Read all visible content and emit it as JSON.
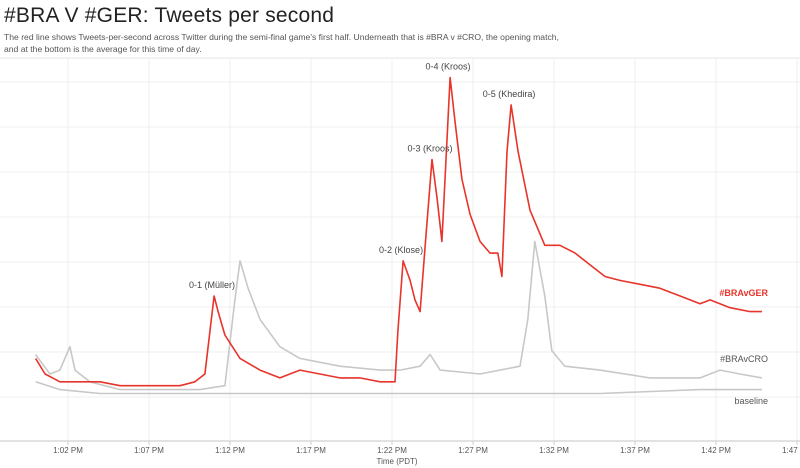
{
  "title": "#BRA V #GER: Tweets per second",
  "subtitle_lines": [
    "The red line shows Tweets-per-second across Twitter during the semi-final game's first half. Underneath that is #BRA v #CRO, the opening match,",
    "and at the bottom is the average for this time of day."
  ],
  "chart_data": {
    "type": "line",
    "title": "#BRA V #GER: Tweets per second",
    "xlabel": "Time (PDT)",
    "ylabel": "",
    "x_ticks": [
      "1:02 PM",
      "1:07 PM",
      "1:12 PM",
      "1:17 PM",
      "1:22 PM",
      "1:27 PM",
      "1:32 PM",
      "1:37 PM",
      "1:42 PM",
      "1:47 PM"
    ],
    "x_tick_times": [
      "13:02:00",
      "13:07:00",
      "13:12:00",
      "13:17:00",
      "13:22:00",
      "13:27:00",
      "13:32:00",
      "13:37:00",
      "13:42:00",
      "13:47:00"
    ],
    "xlim": [
      "13:00:00",
      "13:47:00"
    ],
    "y_units": "relative (no y-axis printed)",
    "ylim": [
      0,
      100
    ],
    "grid": true,
    "series": [
      {
        "name": "#BRAvGER",
        "color": "#e8342a",
        "points": [
          [
            "13:00:00",
            24
          ],
          [
            "13:00:35",
            20
          ],
          [
            "13:01:30",
            18
          ],
          [
            "13:02:44",
            18
          ],
          [
            "13:03:59",
            18
          ],
          [
            "13:05:13",
            17
          ],
          [
            "13:06:27",
            17
          ],
          [
            "13:07:41",
            17
          ],
          [
            "13:08:55",
            17
          ],
          [
            "13:09:50",
            18
          ],
          [
            "13:10:27",
            20
          ],
          [
            "13:11:01",
            40
          ],
          [
            "13:11:16",
            36
          ],
          [
            "13:11:41",
            30
          ],
          [
            "13:12:37",
            24
          ],
          [
            "13:13:51",
            21
          ],
          [
            "13:15:05",
            19
          ],
          [
            "13:16:19",
            21
          ],
          [
            "13:17:33",
            20
          ],
          [
            "13:18:47",
            19
          ],
          [
            "13:20:01",
            19
          ],
          [
            "13:21:16",
            18
          ],
          [
            "13:22:11",
            18
          ],
          [
            "13:22:22",
            31
          ],
          [
            "13:22:41",
            49
          ],
          [
            "13:23:07",
            44
          ],
          [
            "13:23:25",
            39
          ],
          [
            "13:23:44",
            36
          ],
          [
            "13:24:02",
            52
          ],
          [
            "13:24:28",
            75
          ],
          [
            "13:24:47",
            65
          ],
          [
            "13:25:05",
            54
          ],
          [
            "13:25:20",
            75
          ],
          [
            "13:25:35",
            96
          ],
          [
            "13:25:53",
            85
          ],
          [
            "13:26:19",
            70
          ],
          [
            "13:26:49",
            61
          ],
          [
            "13:27:26",
            54
          ],
          [
            "13:28:03",
            51
          ],
          [
            "13:28:32",
            51
          ],
          [
            "13:28:47",
            45
          ],
          [
            "13:29:06",
            77
          ],
          [
            "13:29:21",
            89
          ],
          [
            "13:29:47",
            77
          ],
          [
            "13:30:31",
            62
          ],
          [
            "13:31:26",
            53
          ],
          [
            "13:32:22",
            53
          ],
          [
            "13:33:18",
            51
          ],
          [
            "13:34:13",
            48
          ],
          [
            "13:35:09",
            45
          ],
          [
            "13:36:04",
            44
          ],
          [
            "13:37:19",
            43
          ],
          [
            "13:38:32",
            42
          ],
          [
            "13:39:47",
            40
          ],
          [
            "13:41:01",
            38
          ],
          [
            "13:41:38",
            39
          ],
          [
            "13:42:52",
            37
          ],
          [
            "13:44:06",
            36
          ],
          [
            "13:44:50",
            36
          ]
        ]
      },
      {
        "name": "#BRAvCRO",
        "color": "#c8c8c8",
        "points": [
          [
            "13:00:00",
            25
          ],
          [
            "13:00:53",
            20
          ],
          [
            "13:01:30",
            21
          ],
          [
            "13:02:07",
            27
          ],
          [
            "13:02:26",
            21
          ],
          [
            "13:03:21",
            18
          ],
          [
            "13:05:13",
            16
          ],
          [
            "13:07:41",
            16
          ],
          [
            "13:10:09",
            16
          ],
          [
            "13:11:41",
            17
          ],
          [
            "13:12:18",
            39
          ],
          [
            "13:12:37",
            49
          ],
          [
            "13:13:07",
            42
          ],
          [
            "13:13:51",
            34
          ],
          [
            "13:15:05",
            27
          ],
          [
            "13:16:19",
            24
          ],
          [
            "13:18:47",
            22
          ],
          [
            "13:21:16",
            21
          ],
          [
            "13:22:30",
            21
          ],
          [
            "13:23:44",
            22
          ],
          [
            "13:24:21",
            25
          ],
          [
            "13:24:58",
            21
          ],
          [
            "13:27:26",
            20
          ],
          [
            "13:29:54",
            22
          ],
          [
            "13:30:23",
            34
          ],
          [
            "13:30:49",
            54
          ],
          [
            "13:31:26",
            40
          ],
          [
            "13:31:52",
            26
          ],
          [
            "13:32:40",
            22
          ],
          [
            "13:34:50",
            21
          ],
          [
            "13:37:55",
            19
          ],
          [
            "13:41:01",
            19
          ],
          [
            "13:42:15",
            21
          ],
          [
            "13:43:29",
            20
          ],
          [
            "13:44:50",
            19
          ]
        ]
      },
      {
        "name": "baseline",
        "color": "#c8c8c8",
        "points": [
          [
            "13:00:00",
            18
          ],
          [
            "13:01:30",
            16
          ],
          [
            "13:03:59",
            15
          ],
          [
            "13:10:09",
            15
          ],
          [
            "13:16:19",
            15
          ],
          [
            "13:22:30",
            15
          ],
          [
            "13:28:40",
            15
          ],
          [
            "13:34:50",
            15
          ],
          [
            "13:41:01",
            16
          ],
          [
            "13:44:50",
            16
          ]
        ]
      }
    ],
    "annotations": [
      {
        "text": "0-1 (Müller)",
        "time": "13:11:01",
        "value": 40
      },
      {
        "text": "0-2 (Klose)",
        "time": "13:22:41",
        "value": 49
      },
      {
        "text": "0-3 (Kroos)",
        "time": "13:24:28",
        "value": 75
      },
      {
        "text": "0-4 (Kroos)",
        "time": "13:25:35",
        "value": 96
      },
      {
        "text": "0-5 (Khedira)",
        "time": "13:29:21",
        "value": 89
      }
    ],
    "series_labels": [
      "#BRAvGER",
      "#BRAvCRO",
      "baseline"
    ]
  }
}
